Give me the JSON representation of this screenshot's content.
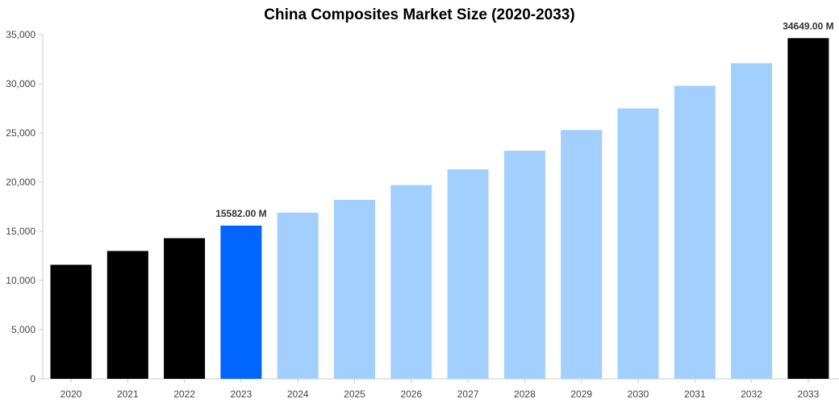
{
  "chart_data": {
    "type": "bar",
    "title": "China Composites Market Size (2020-2033)",
    "xlabel": "",
    "ylabel": "",
    "ylim": [
      0,
      35000
    ],
    "yticks": [
      0,
      5000,
      10000,
      15000,
      20000,
      25000,
      30000,
      35000
    ],
    "ytick_labels": [
      "0",
      "5,000",
      "10,000",
      "15,000",
      "20,000",
      "25,000",
      "30,000",
      "35,000"
    ],
    "categories": [
      "2020",
      "2021",
      "2022",
      "2023",
      "2024",
      "2025",
      "2026",
      "2027",
      "2028",
      "2029",
      "2030",
      "2031",
      "2032",
      "2033"
    ],
    "values": [
      11600,
      13000,
      14300,
      15582,
      16900,
      18200,
      19700,
      21300,
      23200,
      25300,
      27500,
      29800,
      32100,
      34649
    ],
    "bar_colors": [
      "#000000",
      "#000000",
      "#000000",
      "#0066ff",
      "#a3cfff",
      "#a3cfff",
      "#a3cfff",
      "#a3cfff",
      "#a3cfff",
      "#a3cfff",
      "#a3cfff",
      "#a3cfff",
      "#a3cfff",
      "#000000"
    ],
    "data_labels": [
      {
        "index": 3,
        "text": "15582.00 M"
      },
      {
        "index": 13,
        "text": "34649.00 M"
      }
    ],
    "grid": false,
    "legend": "none"
  }
}
